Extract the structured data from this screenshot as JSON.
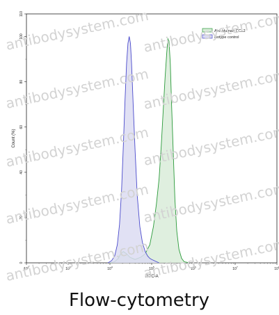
{
  "caption": "Flow-cytometry",
  "watermark": "antibodysystem.com",
  "chart_data": {
    "type": "area",
    "title": "",
    "xlabel": "FITC-A",
    "ylabel": "Count (%)",
    "xscale": "log",
    "xlim": [
      100,
      100000000
    ],
    "ylim": [
      0,
      110
    ],
    "grid": false,
    "legend_position": "top-right",
    "x_ticks": [
      {
        "value": 100,
        "base": "10",
        "exp": "2"
      },
      {
        "value": 1000,
        "base": "10",
        "exp": "3"
      },
      {
        "value": 10000,
        "base": "10",
        "exp": "4"
      },
      {
        "value": 100000,
        "base": "10",
        "exp": "5"
      },
      {
        "value": 1000000,
        "base": "10",
        "exp": "6"
      },
      {
        "value": 10000000,
        "base": "10",
        "exp": "7"
      },
      {
        "value": 100000000,
        "base": "10",
        "exp": "8"
      }
    ],
    "y_ticks": [
      "0",
      "20",
      "40",
      "60",
      "80",
      "100",
      "110"
    ],
    "series": [
      {
        "name": "Anti-Human CCL2",
        "color": "#2a9a3a",
        "fill": "#d9ecd9",
        "x": [
          10000,
          13000,
          16000,
          18000,
          21000,
          25000,
          30000,
          40000,
          55000,
          70000,
          90000,
          110000,
          130000,
          150000,
          170000,
          190000,
          210000,
          230000,
          245000,
          260000,
          280000,
          300000,
          330000,
          360000,
          400000,
          450000,
          520000,
          600000,
          800000
        ],
        "values": [
          0,
          0.5,
          2,
          4,
          5,
          4,
          2.5,
          1.5,
          2.5,
          4,
          8,
          16,
          26,
          37,
          52,
          68,
          82,
          93,
          99,
          98,
          88,
          70,
          48,
          28,
          14,
          6,
          2,
          0.5,
          0
        ]
      },
      {
        "name": "isotype control",
        "color": "#4a4acc",
        "fill": "#dcdcf2",
        "x": [
          9000,
          11000,
          13000,
          15000,
          17000,
          19000,
          21000,
          23000,
          25000,
          27000,
          29000,
          31000,
          33000,
          36000,
          40000,
          45000,
          52000,
          60000,
          70000,
          80000,
          90000,
          100000,
          120000,
          150000
        ],
        "values": [
          0,
          1,
          3,
          8,
          17,
          32,
          52,
          72,
          88,
          97,
          100,
          97,
          88,
          70,
          50,
          30,
          16,
          9,
          5,
          3,
          2,
          1.5,
          0.8,
          0
        ]
      }
    ]
  }
}
